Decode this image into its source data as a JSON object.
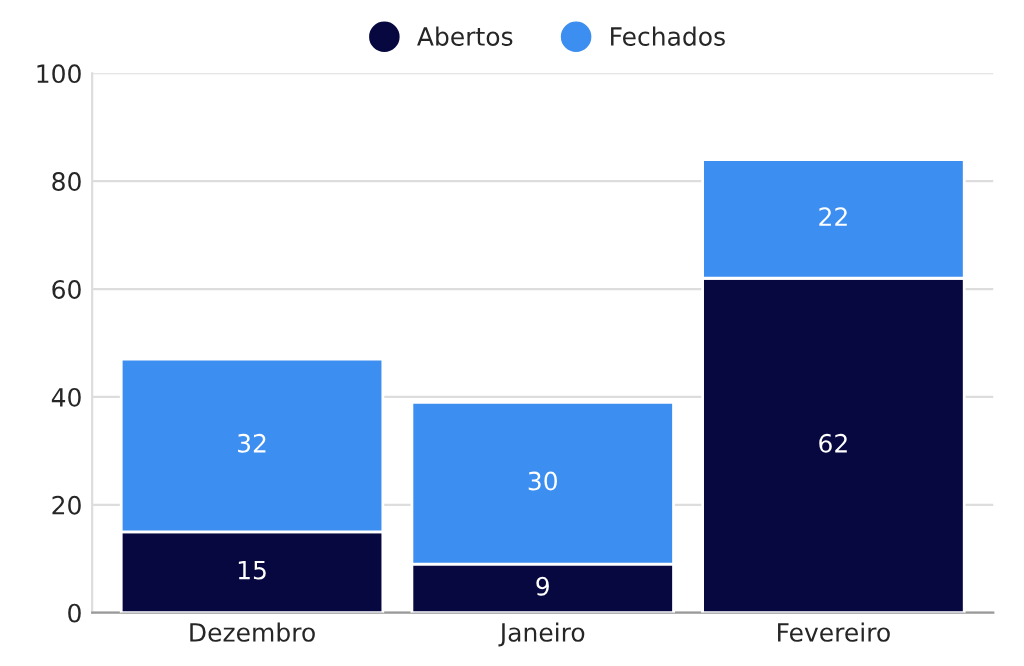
{
  "chart_data": {
    "type": "bar",
    "stacked": true,
    "categories": [
      "Dezembro",
      "Janeiro",
      "Fevereiro"
    ],
    "series": [
      {
        "name": "Abertos",
        "color": "#07083f",
        "values": [
          15,
          9,
          62
        ]
      },
      {
        "name": "Fechados",
        "color": "#3c8ef0",
        "values": [
          32,
          30,
          22
        ]
      }
    ],
    "ylim": [
      0,
      100
    ],
    "yticks": [
      0,
      20,
      40,
      60,
      80,
      100
    ],
    "grid": "y",
    "legend": "top",
    "data_labels": true
  }
}
